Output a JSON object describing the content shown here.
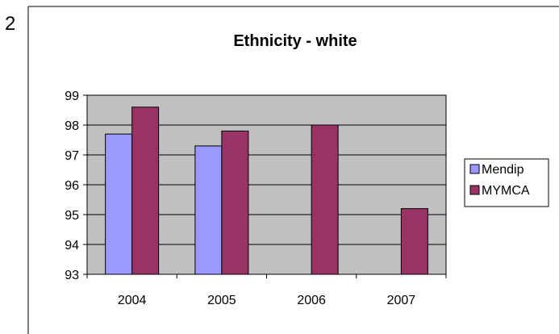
{
  "page_number": "2",
  "colors": {
    "plot_bg": "#c0c0c0",
    "gridline": "#000000",
    "border": "#000000",
    "mendip": "#9999ff",
    "mymca": "#993366"
  },
  "chart_data": {
    "type": "bar",
    "title": "Ethnicity - white",
    "xlabel": "",
    "ylabel": "",
    "categories": [
      "2004",
      "2005",
      "2006",
      "2007"
    ],
    "series": [
      {
        "name": "Mendip",
        "values": [
          97.7,
          97.3,
          null,
          null
        ]
      },
      {
        "name": "MYMCA",
        "values": [
          98.6,
          97.8,
          98.0,
          95.2
        ]
      }
    ],
    "ylim": [
      93,
      99
    ],
    "yticks": [
      "93",
      "94",
      "95",
      "96",
      "97",
      "98",
      "99"
    ],
    "grid": true,
    "legend_position": "right"
  }
}
